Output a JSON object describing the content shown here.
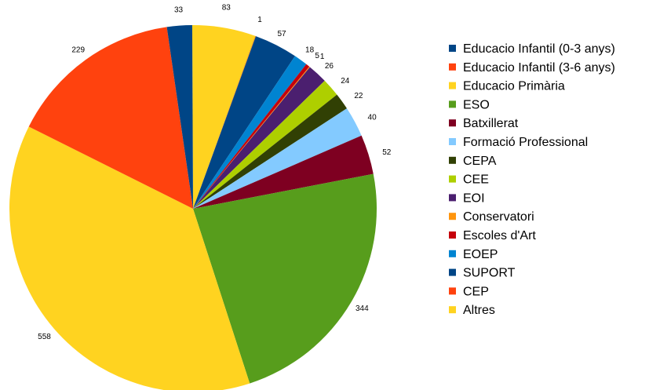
{
  "chart_data": {
    "type": "pie",
    "title": "",
    "start_angle_deg": -0.26,
    "direction": "clockwise",
    "legend_position": "right",
    "slices": [
      {
        "label": "Altres",
        "value": 83,
        "color": "#FFD320"
      },
      {
        "label": "Conservatori",
        "value": 1,
        "color": "#FF950E"
      },
      {
        "label": "SUPORT",
        "value": 57,
        "color": "#004586"
      },
      {
        "label": "EOEP",
        "value": 18,
        "color": "#0084D1"
      },
      {
        "label": "Escoles d'Art",
        "value": 5,
        "color": "#C5000B"
      },
      {
        "label": "Conservatori",
        "value": 1,
        "color": "#FF950E"
      },
      {
        "label": "EOI",
        "value": 26,
        "color": "#4B1F6F"
      },
      {
        "label": "CEE",
        "value": 24,
        "color": "#AECF00"
      },
      {
        "label": "CEPA",
        "value": 22,
        "color": "#314004"
      },
      {
        "label": "Formació Professional",
        "value": 40,
        "color": "#83CAFF"
      },
      {
        "label": "Batxillerat",
        "value": 52,
        "color": "#7E0021"
      },
      {
        "label": "ESO",
        "value": 344,
        "color": "#579D1C"
      },
      {
        "label": "Educacio Primària",
        "value": 558,
        "color": "#FFD320"
      },
      {
        "label": "Educacio Infantil (3-6 anys)",
        "value": 229,
        "color": "#FF420E"
      },
      {
        "label": "Educacio Infantil (0-3 anys)",
        "value": 33,
        "color": "#004586"
      }
    ],
    "data_labels": [
      {
        "text": "83"
      },
      {
        "text": "1"
      },
      {
        "text": "57"
      },
      {
        "text": "18"
      },
      {
        "text": "5"
      },
      {
        "text": "1"
      },
      {
        "text": "26"
      },
      {
        "text": "24"
      },
      {
        "text": "22"
      },
      {
        "text": "40"
      },
      {
        "text": "52"
      },
      {
        "text": "344"
      },
      {
        "text": "558"
      },
      {
        "text": "229"
      },
      {
        "text": "33"
      }
    ],
    "legend": [
      {
        "label": "Educacio Infantil (0-3 anys)",
        "color": "#004586"
      },
      {
        "label": "Educacio Infantil (3-6 anys)",
        "color": "#FF420E"
      },
      {
        "label": "Educacio Primària",
        "color": "#FFD320"
      },
      {
        "label": "ESO",
        "color": "#579D1C"
      },
      {
        "label": "Batxillerat",
        "color": "#7E0021"
      },
      {
        "label": "Formació Professional",
        "color": "#83CAFF"
      },
      {
        "label": "CEPA",
        "color": "#314004"
      },
      {
        "label": "CEE",
        "color": "#AECF00"
      },
      {
        "label": "EOI",
        "color": "#4B1F6F"
      },
      {
        "label": "Conservatori",
        "color": "#FF950E"
      },
      {
        "label": "Escoles d'Art",
        "color": "#C5000B"
      },
      {
        "label": "EOEP",
        "color": "#0084D1"
      },
      {
        "label": "SUPORT",
        "color": "#004586"
      },
      {
        "label": "CEP",
        "color": "#FF420E"
      },
      {
        "label": "Altres",
        "color": "#FFD320"
      }
    ]
  }
}
